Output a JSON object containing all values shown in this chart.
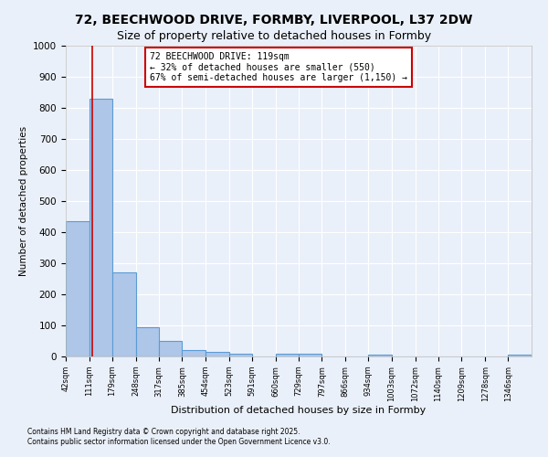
{
  "title": "72, BEECHWOOD DRIVE, FORMBY, LIVERPOOL, L37 2DW",
  "subtitle": "Size of property relative to detached houses in Formby",
  "xlabel": "Distribution of detached houses by size in Formby",
  "ylabel": "Number of detached properties",
  "bar_edges": [
    42,
    111,
    179,
    248,
    317,
    385,
    454,
    523,
    591,
    660,
    729,
    797,
    866,
    934,
    1003,
    1072,
    1140,
    1209,
    1278,
    1346,
    1415
  ],
  "bar_heights": [
    435,
    830,
    270,
    95,
    50,
    22,
    15,
    10,
    0,
    10,
    10,
    0,
    0,
    5,
    0,
    0,
    0,
    0,
    0,
    5
  ],
  "bar_color": "#aec6e8",
  "bar_edgecolor": "#5b9bd5",
  "property_line_x": 119,
  "annotation_title": "72 BEECHWOOD DRIVE: 119sqm",
  "annotation_line1": "← 32% of detached houses are smaller (550)",
  "annotation_line2": "67% of semi-detached houses are larger (1,150) →",
  "annotation_box_color": "#ffffff",
  "annotation_box_edgecolor": "#cc0000",
  "vline_color": "#cc0000",
  "ylim": [
    0,
    1000
  ],
  "footnote1": "Contains HM Land Registry data © Crown copyright and database right 2025.",
  "footnote2": "Contains public sector information licensed under the Open Government Licence v3.0.",
  "background_color": "#eaf0f9",
  "plot_background": "#eaf0f9",
  "grid_color": "#ffffff",
  "title_fontsize": 10,
  "subtitle_fontsize": 9
}
